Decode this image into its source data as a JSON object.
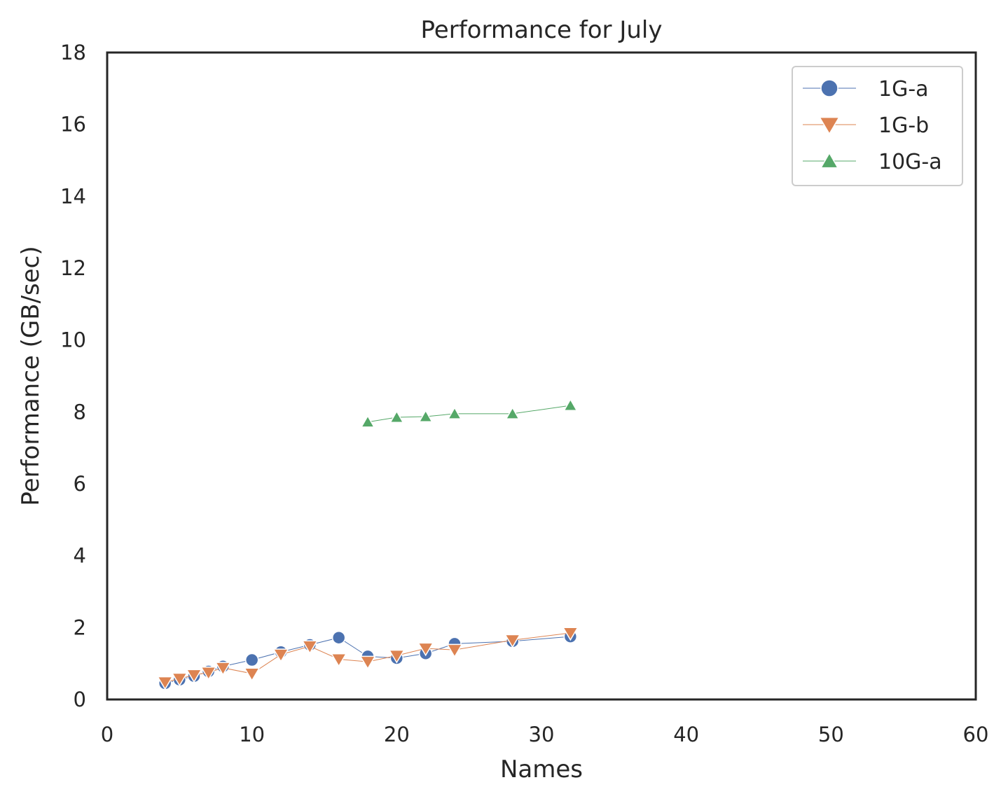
{
  "chart_data": {
    "type": "line",
    "title": "Performance for July",
    "xlabel": "Names",
    "ylabel": "Performance (GB/sec)",
    "xlim": [
      0,
      60
    ],
    "ylim": [
      0,
      18
    ],
    "xticks": [
      0,
      10,
      20,
      30,
      40,
      50,
      60
    ],
    "yticks": [
      0,
      2,
      4,
      6,
      8,
      10,
      12,
      14,
      16,
      18
    ],
    "grid": false,
    "legend_position": "top-right",
    "series": [
      {
        "name": "1G-a",
        "color": "#4c72b0",
        "marker": "circle",
        "x": [
          4,
          5,
          6,
          7,
          8,
          10,
          12,
          14,
          16,
          18,
          20,
          22,
          24,
          28,
          32
        ],
        "y": [
          0.45,
          0.55,
          0.65,
          0.78,
          0.92,
          1.1,
          1.32,
          1.52,
          1.72,
          1.2,
          1.15,
          1.28,
          1.55,
          1.62,
          1.75
        ]
      },
      {
        "name": "1G-b",
        "color": "#dd8452",
        "marker": "triangle-down",
        "x": [
          4,
          5,
          6,
          7,
          8,
          10,
          12,
          14,
          16,
          18,
          20,
          22,
          24,
          28,
          32
        ],
        "y": [
          0.48,
          0.58,
          0.68,
          0.75,
          0.88,
          0.72,
          1.25,
          1.48,
          1.12,
          1.05,
          1.22,
          1.42,
          1.38,
          1.65,
          1.85
        ]
      },
      {
        "name": "10G-a",
        "color": "#55a868",
        "marker": "triangle-up",
        "x": [
          18,
          20,
          22,
          24,
          28,
          32
        ],
        "y": [
          7.72,
          7.85,
          7.87,
          7.95,
          7.95,
          8.18
        ]
      }
    ]
  }
}
